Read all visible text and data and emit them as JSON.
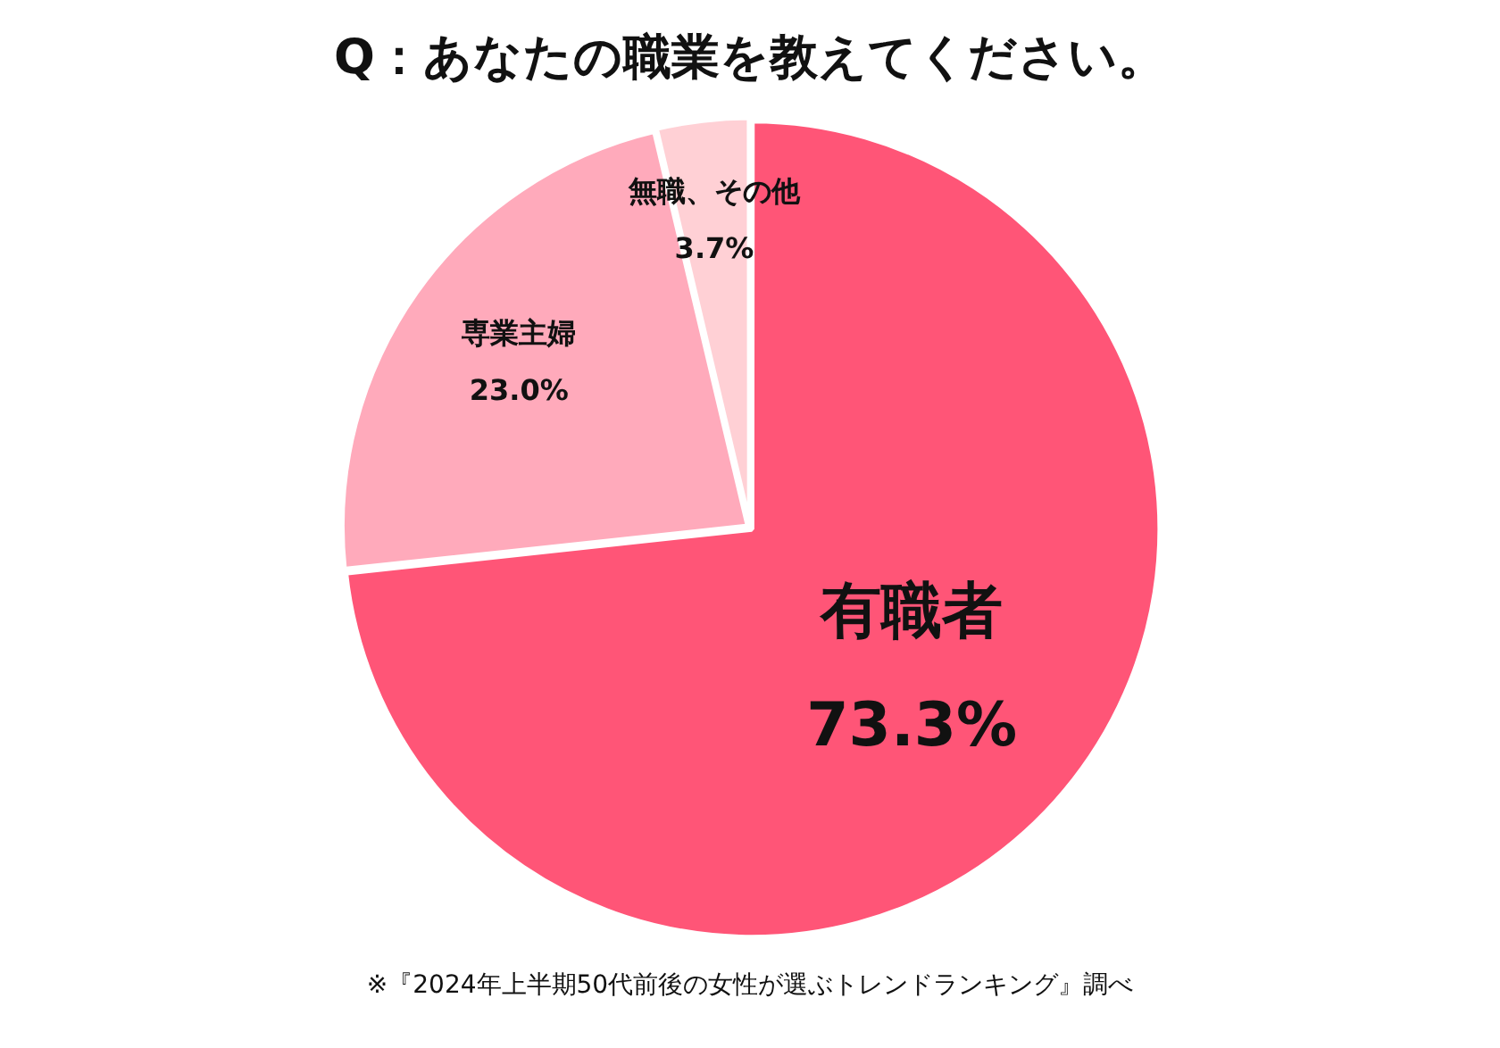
{
  "chart_data": {
    "type": "pie",
    "title": "Q：あなたの職業を教えてください。",
    "categories": [
      "有職者",
      "専業主婦",
      "無職、その他"
    ],
    "values": [
      73.3,
      23.0,
      3.7
    ],
    "colors": [
      "#ff5577",
      "#ffaabb",
      "#ffd0d5"
    ],
    "value_labels": [
      "73.3%",
      "23.0%",
      "3.7%"
    ],
    "annotations": [
      "※『2024年上半期50代前後の女性が選ぶトレンドランキング』調べ"
    ],
    "legend": false
  }
}
